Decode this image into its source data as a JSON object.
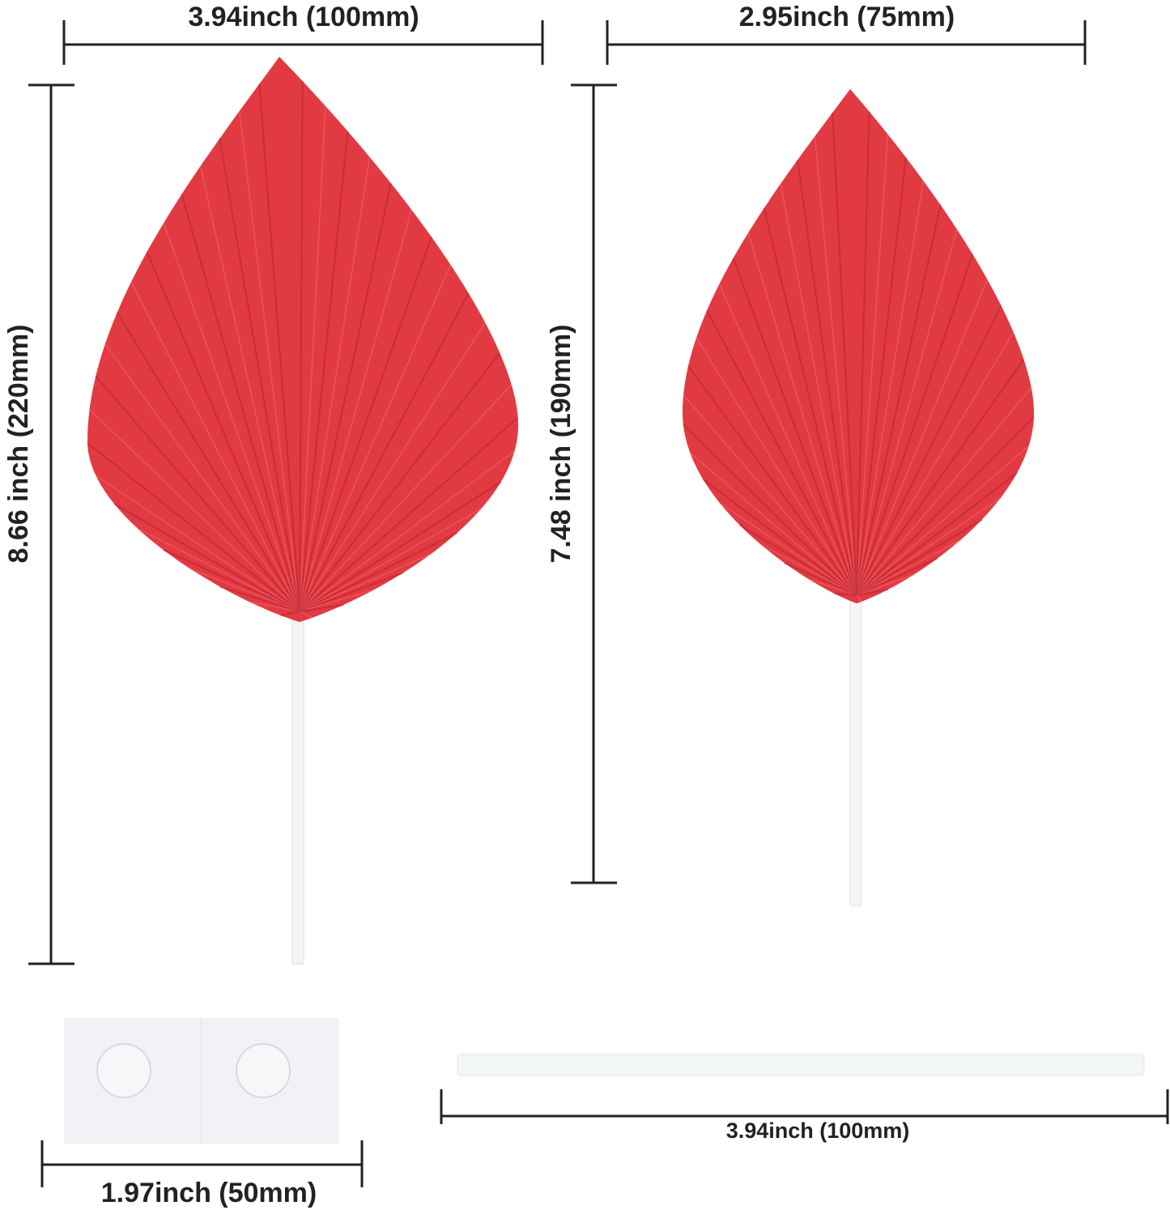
{
  "dimensions": {
    "large_width": "3.94inch  (100mm)",
    "small_width": "2.95inch  (75mm)",
    "large_height": "8.66 inch  (220mm)",
    "small_height": "7.48 inch  (190mm)",
    "adhesive_width": "1.97inch  (50mm)",
    "stick_length": "3.94inch  (100mm)"
  },
  "colors": {
    "leaf": "#e23a42",
    "leaf_shadow": "#b8212c",
    "stick": "#f4f6f6",
    "line": "#222222"
  }
}
